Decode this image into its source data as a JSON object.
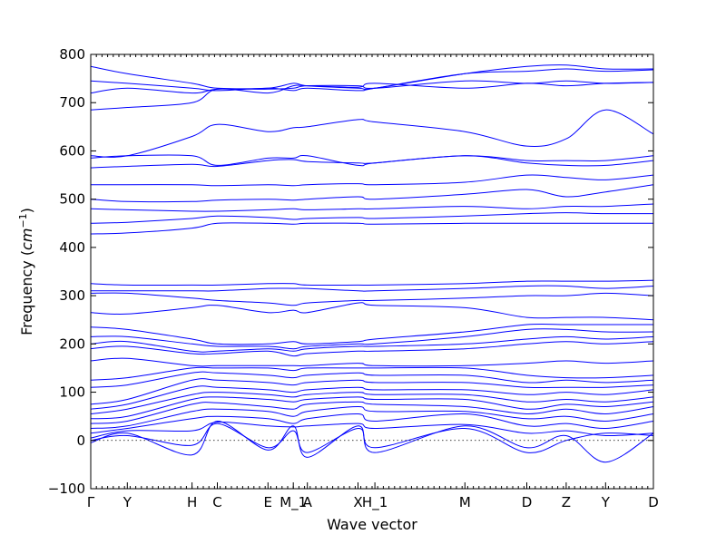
{
  "chart_data": {
    "type": "line",
    "xlabel": "Wave vector",
    "ylabel": "Frequency (cm⁻¹)",
    "ylabel_parts": {
      "prefix": "Frequency (",
      "unit": "cm",
      "sup": "−1",
      "suffix": ")"
    },
    "ylim": [
      -100,
      800
    ],
    "yticks": [
      -100,
      0,
      100,
      200,
      300,
      400,
      500,
      600,
      700,
      800
    ],
    "xlim": [
      0,
      100
    ],
    "minor_xticks_every": 1,
    "zero_line": true,
    "high_symmetry_points": [
      {
        "label": "Γ",
        "x": 0
      },
      {
        "label": "Y",
        "x": 6.5
      },
      {
        "label": "H",
        "x": 18
      },
      {
        "label": "C",
        "x": 22.5
      },
      {
        "label": "E",
        "x": 31.5
      },
      {
        "label": "M_1",
        "x": 36
      },
      {
        "label": "A",
        "x": 38.5
      },
      {
        "label": "X",
        "x": 47.5
      },
      {
        "label": "H_1",
        "x": 50.5
      },
      {
        "label": "M",
        "x": 66.5
      },
      {
        "label": "D",
        "x": 77.5
      },
      {
        "label": "Z",
        "x": 84.5
      },
      {
        "label": "Y",
        "x": 91.5
      },
      {
        "label": "D",
        "x": 100
      }
    ],
    "series_x": [
      0,
      6.5,
      18,
      22.5,
      31.5,
      36,
      38.5,
      47.5,
      50.5,
      66.5,
      77.5,
      84.5,
      91.5,
      100
    ],
    "series": [
      {
        "values": [
          -5,
          15,
          -30,
          40,
          -20,
          30,
          -35,
          30,
          -25,
          30,
          -15,
          10,
          -45,
          15
        ]
      },
      {
        "values": [
          0,
          10,
          -10,
          35,
          -15,
          20,
          -25,
          25,
          -15,
          25,
          -25,
          0,
          15,
          10
        ]
      },
      {
        "values": [
          5,
          20,
          20,
          38,
          30,
          28,
          30,
          35,
          25,
          33,
          15,
          20,
          10,
          15
        ]
      },
      {
        "values": [
          15,
          25,
          45,
          50,
          45,
          35,
          45,
          55,
          40,
          55,
          30,
          35,
          25,
          40
        ]
      },
      {
        "values": [
          25,
          30,
          60,
          65,
          60,
          50,
          60,
          70,
          60,
          60,
          45,
          50,
          40,
          55
        ]
      },
      {
        "values": [
          35,
          40,
          75,
          78,
          70,
          65,
          75,
          80,
          75,
          70,
          55,
          65,
          55,
          70
        ]
      },
      {
        "values": [
          45,
          50,
          85,
          90,
          85,
          80,
          85,
          90,
          85,
          85,
          65,
          75,
          70,
          80
        ]
      },
      {
        "values": [
          55,
          65,
          95,
          100,
          95,
          90,
          95,
          100,
          95,
          95,
          80,
          85,
          80,
          90
        ]
      },
      {
        "values": [
          65,
          75,
          110,
          110,
          105,
          100,
          105,
          110,
          105,
          105,
          95,
          100,
          95,
          105
        ]
      },
      {
        "values": [
          75,
          85,
          125,
          125,
          120,
          115,
          120,
          125,
          120,
          120,
          110,
          110,
          110,
          115
        ]
      },
      {
        "values": [
          110,
          115,
          140,
          140,
          135,
          130,
          135,
          140,
          135,
          135,
          120,
          125,
          120,
          125
        ]
      },
      {
        "values": [
          125,
          130,
          150,
          150,
          150,
          145,
          150,
          150,
          150,
          150,
          135,
          130,
          130,
          135
        ]
      },
      {
        "values": [
          165,
          170,
          155,
          155,
          155,
          155,
          155,
          160,
          155,
          155,
          160,
          165,
          160,
          165
        ]
      },
      {
        "values": [
          190,
          195,
          180,
          180,
          185,
          175,
          180,
          185,
          185,
          190,
          200,
          205,
          200,
          205
        ]
      },
      {
        "values": [
          200,
          205,
          185,
          185,
          190,
          185,
          190,
          195,
          195,
          200,
          210,
          215,
          210,
          215
        ]
      },
      {
        "values": [
          215,
          215,
          200,
          195,
          195,
          190,
          195,
          200,
          200,
          215,
          230,
          230,
          225,
          225
        ]
      },
      {
        "values": [
          235,
          230,
          210,
          200,
          200,
          205,
          200,
          205,
          210,
          225,
          240,
          240,
          240,
          240
        ]
      },
      {
        "values": [
          265,
          262,
          275,
          280,
          265,
          270,
          265,
          285,
          280,
          275,
          255,
          255,
          255,
          250
        ]
      },
      {
        "values": [
          305,
          305,
          295,
          290,
          285,
          280,
          285,
          290,
          290,
          295,
          300,
          300,
          305,
          300
        ]
      },
      {
        "values": [
          310,
          310,
          310,
          310,
          315,
          315,
          315,
          310,
          310,
          315,
          320,
          320,
          315,
          320
        ]
      },
      {
        "values": [
          325,
          322,
          322,
          322,
          325,
          325,
          322,
          322,
          322,
          325,
          330,
          330,
          330,
          332
        ]
      },
      {
        "values": [
          428,
          430,
          440,
          450,
          450,
          448,
          450,
          450,
          448,
          450,
          450,
          450,
          450,
          450
        ]
      },
      {
        "values": [
          450,
          452,
          460,
          465,
          462,
          458,
          460,
          462,
          460,
          465,
          470,
          472,
          470,
          470
        ]
      },
      {
        "values": [
          480,
          478,
          475,
          475,
          478,
          480,
          478,
          480,
          480,
          485,
          480,
          485,
          485,
          490
        ]
      },
      {
        "values": [
          500,
          495,
          495,
          498,
          500,
          498,
          500,
          505,
          500,
          510,
          520,
          505,
          515,
          530
        ]
      },
      {
        "values": [
          530,
          530,
          530,
          528,
          530,
          528,
          530,
          532,
          530,
          535,
          550,
          545,
          540,
          550
        ]
      },
      {
        "values": [
          565,
          568,
          572,
          568,
          580,
          582,
          578,
          575,
          575,
          590,
          575,
          570,
          570,
          580
        ]
      },
      {
        "values": [
          585,
          590,
          590,
          570,
          585,
          585,
          590,
          570,
          575,
          590,
          580,
          580,
          580,
          590
        ]
      },
      {
        "values": [
          590,
          590,
          630,
          655,
          640,
          648,
          650,
          665,
          660,
          640,
          610,
          625,
          685,
          635
        ]
      },
      {
        "values": [
          685,
          690,
          700,
          728,
          720,
          735,
          735,
          732,
          740,
          730,
          740,
          735,
          740,
          742
        ]
      },
      {
        "values": [
          720,
          730,
          720,
          728,
          728,
          730,
          735,
          735,
          730,
          745,
          740,
          745,
          740,
          742
        ]
      },
      {
        "values": [
          745,
          740,
          730,
          725,
          730,
          725,
          730,
          725,
          730,
          760,
          765,
          770,
          765,
          768
        ]
      },
      {
        "values": [
          775,
          760,
          740,
          730,
          730,
          740,
          735,
          730,
          730,
          760,
          775,
          778,
          770,
          770
        ]
      }
    ]
  }
}
